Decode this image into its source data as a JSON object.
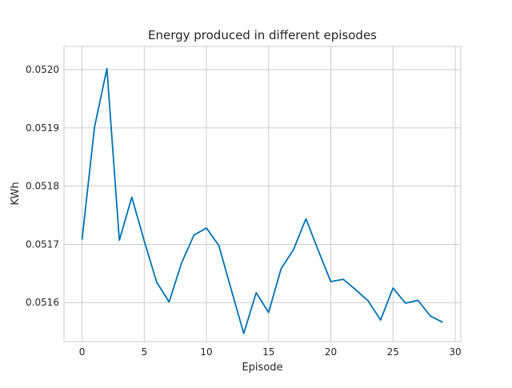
{
  "chart_data": {
    "type": "line",
    "title": "Energy produced in different episodes",
    "xlabel": "Episode",
    "ylabel": "KWh",
    "xlim": [
      -1.45,
      30.45
    ],
    "ylim": [
      0.051533,
      0.05204
    ],
    "xticks": [
      0,
      5,
      10,
      15,
      20,
      25,
      30
    ],
    "xtick_labels": [
      "0",
      "5",
      "10",
      "15",
      "20",
      "25",
      "30"
    ],
    "yticks": [
      0.0516,
      0.0517,
      0.0518,
      0.0519,
      0.052
    ],
    "ytick_labels": [
      "0.0516",
      "0.0517",
      "0.0518",
      "0.0519",
      "0.0520"
    ],
    "grid": true,
    "legend": "none",
    "series": [
      {
        "color": "#0072b2",
        "x": [
          0,
          1,
          2,
          3,
          4,
          5,
          6,
          7,
          8,
          9,
          10,
          11,
          12,
          13,
          14,
          15,
          16,
          17,
          18,
          19,
          20,
          21,
          22,
          23,
          24,
          25,
          26,
          27,
          28,
          29
        ],
        "values": [
          0.051708,
          0.051901,
          0.052002,
          0.051707,
          0.051781,
          0.051706,
          0.051635,
          0.051601,
          0.051668,
          0.051716,
          0.051728,
          0.051698,
          0.051622,
          0.051547,
          0.051617,
          0.051583,
          0.051658,
          0.051691,
          0.051744,
          0.051689,
          0.051636,
          0.05164,
          0.051622,
          0.051603,
          0.05157,
          0.051625,
          0.051599,
          0.051604,
          0.051577,
          0.051566
        ]
      }
    ]
  },
  "colors": {
    "grid": "#cccccc",
    "spine": "#cccccc",
    "text": "#262626"
  }
}
